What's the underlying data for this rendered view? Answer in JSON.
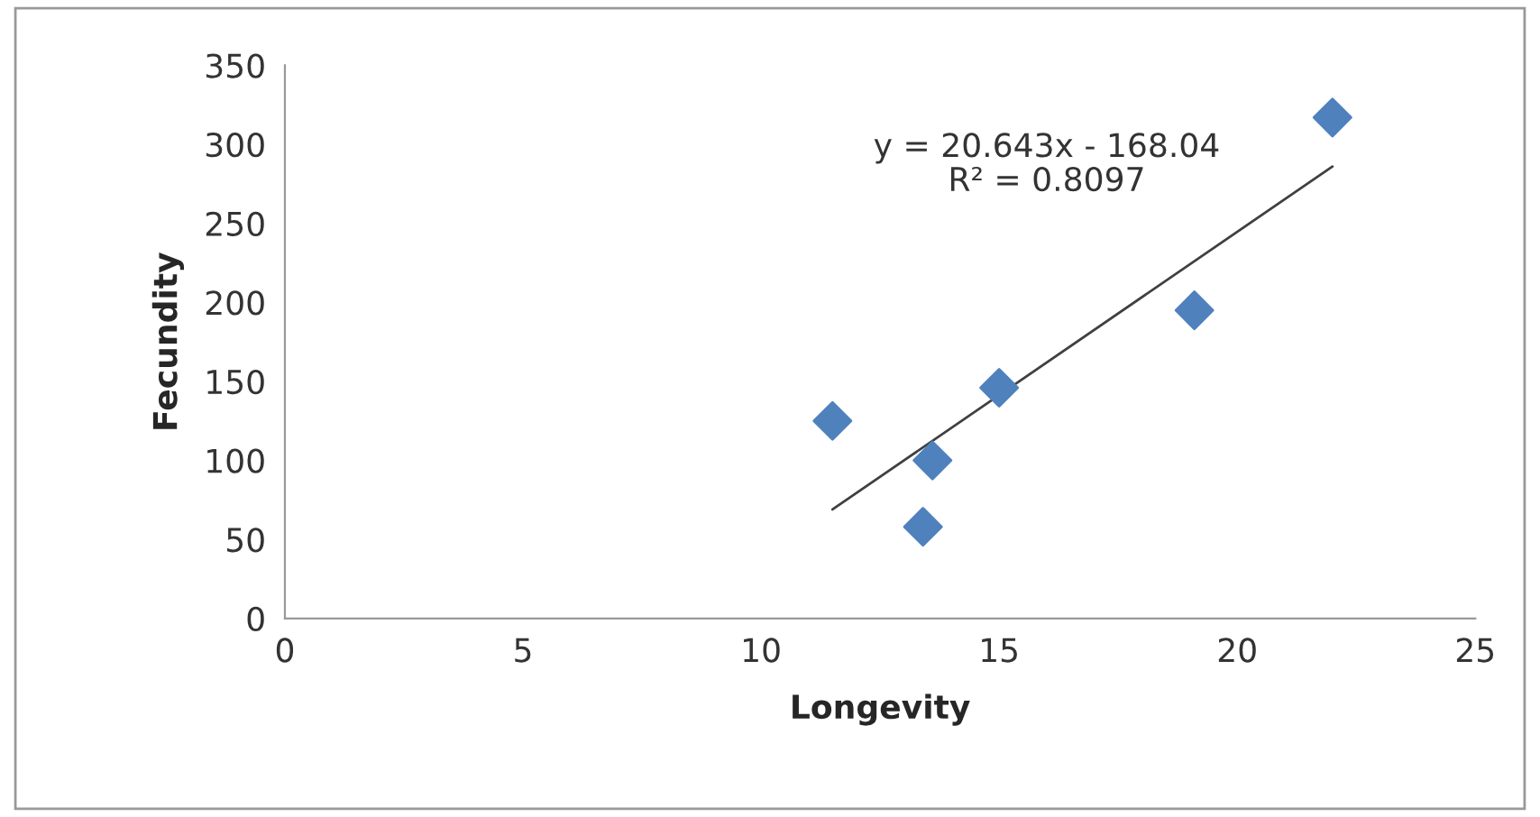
{
  "chart_data": {
    "type": "scatter",
    "xlabel": "Longevity",
    "ylabel": "Fecundity",
    "xlim": [
      0,
      25
    ],
    "xticks": [
      0,
      5,
      10,
      15,
      20,
      25
    ],
    "ylim": [
      0,
      350
    ],
    "yticks": [
      0,
      50,
      100,
      150,
      200,
      250,
      300,
      350
    ],
    "grid": false,
    "legend": false,
    "marker": "diamond",
    "series": [
      {
        "type": "scatter",
        "color": "#4f81bd",
        "x": [
          11.5,
          13.6,
          13.4,
          15.0,
          19.1,
          22.0
        ],
        "values": [
          125,
          100,
          58,
          146,
          195,
          317
        ]
      },
      {
        "type": "line",
        "color": "#404040",
        "x": [
          11.5,
          22.0
        ],
        "values": [
          69,
          286
        ],
        "marker": "none",
        "line_style": "solid"
      }
    ],
    "annotations": [
      "y = 20.643x - 168.04\nR² = 0.8097"
    ]
  }
}
